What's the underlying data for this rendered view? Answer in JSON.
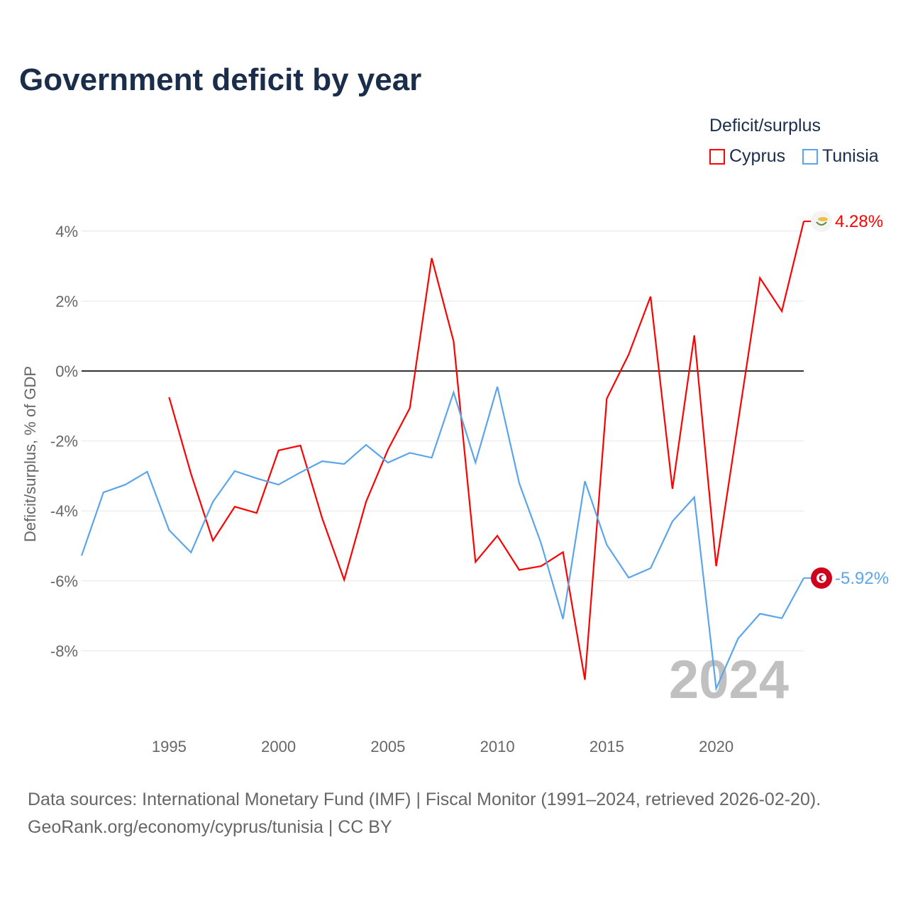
{
  "title": "Government deficit by year",
  "legend": {
    "title": "Deficit/surplus",
    "items": [
      {
        "label": "Cyprus",
        "color": "#ff0000"
      },
      {
        "label": "Tunisia",
        "color": "#5aa5eb"
      }
    ]
  },
  "source_line1": "Data sources: International Monetary Fund (IMF) | Fiscal Monitor (1991–2024, retrieved 2026-02-20).",
  "source_line2": "GeoRank.org/economy/cyprus/tunisia | CC BY",
  "chart_data": {
    "type": "line",
    "title": "Government deficit by year",
    "xlabel": "",
    "ylabel": "Deficit/surplus, % of GDP",
    "xlim": [
      1991,
      2024
    ],
    "ylim": [
      -9.5,
      4.5
    ],
    "x_ticks": [
      1995,
      2000,
      2005,
      2010,
      2015,
      2020
    ],
    "y_ticks": [
      4,
      2,
      0,
      -2,
      -4,
      -6,
      -8
    ],
    "y_tick_labels": [
      "4%",
      "2%",
      "0%",
      "-2%",
      "-4%",
      "-6%",
      "-8%"
    ],
    "year_watermark": "2024",
    "series": [
      {
        "name": "Cyprus",
        "color": "#ff0000",
        "end_label": "4.28%",
        "x": [
          1995,
          1996,
          1997,
          1998,
          1999,
          2000,
          2001,
          2002,
          2003,
          2004,
          2005,
          2006,
          2007,
          2008,
          2009,
          2010,
          2011,
          2012,
          2013,
          2014,
          2015,
          2016,
          2017,
          2018,
          2019,
          2020,
          2021,
          2022,
          2023,
          2024
        ],
        "values": [
          -0.75,
          -2.94,
          -4.85,
          -3.88,
          -4.06,
          -2.27,
          -2.13,
          -4.22,
          -5.97,
          -3.74,
          -2.25,
          -1.06,
          3.23,
          0.85,
          -5.46,
          -4.71,
          -5.69,
          -5.58,
          -5.18,
          -8.83,
          -0.79,
          0.47,
          2.13,
          -3.37,
          1.02,
          -5.58,
          -1.46,
          2.66,
          1.71,
          4.28
        ]
      },
      {
        "name": "Tunisia",
        "color": "#5aa5eb",
        "end_label": "-5.92%",
        "x": [
          1991,
          1992,
          1993,
          1994,
          1995,
          1996,
          1997,
          1998,
          1999,
          2000,
          2001,
          2002,
          2003,
          2004,
          2005,
          2006,
          2007,
          2008,
          2009,
          2010,
          2011,
          2012,
          2013,
          2014,
          2015,
          2016,
          2017,
          2018,
          2019,
          2020,
          2021,
          2022,
          2023,
          2024
        ],
        "values": [
          -5.28,
          -3.47,
          -3.25,
          -2.88,
          -4.55,
          -5.19,
          -3.74,
          -2.86,
          -3.07,
          -3.25,
          -2.9,
          -2.58,
          -2.66,
          -2.11,
          -2.62,
          -2.34,
          -2.48,
          -0.61,
          -2.62,
          -0.45,
          -3.21,
          -4.93,
          -7.09,
          -3.15,
          -4.97,
          -5.91,
          -5.64,
          -4.3,
          -3.61,
          -9.08,
          -7.65,
          -6.94,
          -7.07,
          -5.92
        ]
      }
    ]
  }
}
